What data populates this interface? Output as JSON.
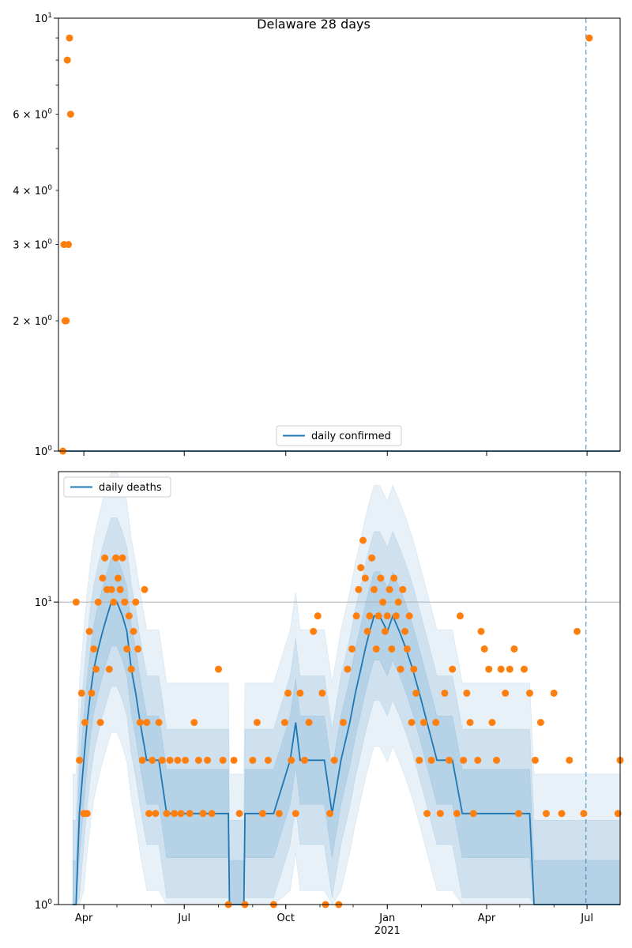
{
  "colors": {
    "line": "#1f77b4",
    "points": "#ff7f0e",
    "band": "#1f77b4",
    "vline": "#1f77b4",
    "hgrid": "#b0b0b0"
  },
  "chart_data": [
    {
      "type": "scatter",
      "title": "Delaware 28 days",
      "yscale": "log",
      "ylim": [
        1,
        10
      ],
      "xlim": [
        "2020-03-09",
        "2021-07-31"
      ],
      "legend": {
        "placement": "lower center",
        "entries": [
          "daily confirmed"
        ]
      },
      "series": [
        {
          "name": "daily confirmed",
          "kind": "line",
          "values": [
            [
              "2020-03-09",
              1
            ],
            [
              "2021-07-31",
              1
            ]
          ]
        },
        {
          "kind": "points",
          "values": [
            [
              "2020-03-13",
              1
            ],
            [
              "2020-03-14",
              3
            ],
            [
              "2020-03-15",
              2
            ],
            [
              "2020-03-16",
              2
            ],
            [
              "2020-03-17",
              8
            ],
            [
              "2020-03-18",
              3
            ],
            [
              "2020-03-19",
              9
            ],
            [
              "2020-03-20",
              6
            ],
            [
              "2021-07-03",
              9
            ]
          ]
        }
      ],
      "vline": "2021-06-30",
      "yticks": {
        "major": [
          {
            "value": 1,
            "base": "10",
            "exp": "0"
          },
          {
            "value": 10,
            "base": "10",
            "exp": "1"
          }
        ],
        "minor": [
          {
            "value": 2,
            "coef": "2 × ",
            "base": "10",
            "exp": "0"
          },
          {
            "value": 3,
            "coef": "3 × ",
            "base": "10",
            "exp": "0"
          },
          {
            "value": 4,
            "coef": "4 × ",
            "base": "10",
            "exp": "0"
          },
          {
            "value": 5
          },
          {
            "value": 6,
            "coef": "6 × ",
            "base": "10",
            "exp": "0"
          },
          {
            "value": 7
          },
          {
            "value": 8
          },
          {
            "value": 9
          }
        ]
      }
    },
    {
      "type": "line",
      "title": "",
      "yscale": "log",
      "ylim": [
        1,
        27
      ],
      "xlim": [
        "2020-03-09",
        "2021-07-31"
      ],
      "legend": {
        "placement": "upper left",
        "entries": [
          "daily deaths"
        ]
      },
      "xticks": [
        {
          "date": "2020-04-01",
          "label": "Apr"
        },
        {
          "date": "2020-07-01",
          "label": "Jul"
        },
        {
          "date": "2020-10-01",
          "label": "Oct"
        },
        {
          "date": "2021-01-01",
          "label": "Jan",
          "sublabel": "2021"
        },
        {
          "date": "2021-04-01",
          "label": "Apr"
        },
        {
          "date": "2021-07-01",
          "label": "Jul"
        }
      ],
      "yticks": {
        "major": [
          {
            "value": 1,
            "base": "10",
            "exp": "0"
          },
          {
            "value": 10,
            "base": "10",
            "exp": "1"
          }
        ]
      },
      "grid": "horizontal at 10",
      "vline": "2021-06-30",
      "series": [
        {
          "name": "daily deaths",
          "kind": "line",
          "values": [
            [
              "2020-03-22",
              1
            ],
            [
              "2020-03-25",
              1
            ],
            [
              "2020-03-28",
              2
            ],
            [
              "2020-04-01",
              3
            ],
            [
              "2020-04-04",
              4
            ],
            [
              "2020-04-07",
              5
            ],
            [
              "2020-04-10",
              6
            ],
            [
              "2020-04-14",
              7
            ],
            [
              "2020-04-18",
              8
            ],
            [
              "2020-04-22",
              9
            ],
            [
              "2020-04-26",
              10
            ],
            [
              "2020-05-01",
              10
            ],
            [
              "2020-05-06",
              9
            ],
            [
              "2020-05-10",
              8
            ],
            [
              "2020-05-14",
              6
            ],
            [
              "2020-05-18",
              5
            ],
            [
              "2020-05-22",
              4
            ],
            [
              "2020-05-28",
              3
            ],
            [
              "2020-06-08",
              3
            ],
            [
              "2020-06-15",
              2
            ],
            [
              "2020-07-15",
              2
            ],
            [
              "2020-08-10",
              2
            ],
            [
              "2020-08-11",
              1
            ],
            [
              "2020-08-24",
              1
            ],
            [
              "2020-08-25",
              2
            ],
            [
              "2020-09-20",
              2
            ],
            [
              "2020-10-05",
              3
            ],
            [
              "2020-10-10",
              4
            ],
            [
              "2020-10-14",
              3
            ],
            [
              "2020-11-05",
              3
            ],
            [
              "2020-11-12",
              2
            ],
            [
              "2020-11-20",
              3
            ],
            [
              "2020-11-28",
              4
            ],
            [
              "2020-12-03",
              5
            ],
            [
              "2020-12-08",
              6
            ],
            [
              "2020-12-12",
              7
            ],
            [
              "2020-12-16",
              8
            ],
            [
              "2020-12-20",
              9
            ],
            [
              "2020-12-25",
              9
            ],
            [
              "2021-01-01",
              8
            ],
            [
              "2021-01-06",
              9
            ],
            [
              "2021-01-12",
              8
            ],
            [
              "2021-01-18",
              7
            ],
            [
              "2021-01-24",
              6
            ],
            [
              "2021-01-30",
              5
            ],
            [
              "2021-02-06",
              4
            ],
            [
              "2021-02-15",
              3
            ],
            [
              "2021-03-01",
              3
            ],
            [
              "2021-03-10",
              2
            ],
            [
              "2021-05-10",
              2
            ],
            [
              "2021-05-14",
              1
            ],
            [
              "2021-07-31",
              1
            ]
          ]
        },
        {
          "kind": "points",
          "values": [
            [
              "2020-03-25",
              10
            ],
            [
              "2020-03-28",
              3
            ],
            [
              "2020-03-30",
              5
            ],
            [
              "2020-04-01",
              2
            ],
            [
              "2020-04-02",
              4
            ],
            [
              "2020-04-04",
              2
            ],
            [
              "2020-04-06",
              8
            ],
            [
              "2020-04-08",
              5
            ],
            [
              "2020-04-10",
              7
            ],
            [
              "2020-04-12",
              6
            ],
            [
              "2020-04-14",
              10
            ],
            [
              "2020-04-16",
              4
            ],
            [
              "2020-04-18",
              12
            ],
            [
              "2020-04-20",
              14
            ],
            [
              "2020-04-22",
              11
            ],
            [
              "2020-04-24",
              6
            ],
            [
              "2020-04-26",
              11
            ],
            [
              "2020-04-28",
              10
            ],
            [
              "2020-04-30",
              14
            ],
            [
              "2020-05-02",
              12
            ],
            [
              "2020-05-04",
              11
            ],
            [
              "2020-05-06",
              14
            ],
            [
              "2020-05-08",
              10
            ],
            [
              "2020-05-10",
              7
            ],
            [
              "2020-05-12",
              9
            ],
            [
              "2020-05-14",
              6
            ],
            [
              "2020-05-16",
              8
            ],
            [
              "2020-05-18",
              10
            ],
            [
              "2020-05-20",
              7
            ],
            [
              "2020-05-22",
              4
            ],
            [
              "2020-05-24",
              3
            ],
            [
              "2020-05-26",
              11
            ],
            [
              "2020-05-28",
              4
            ],
            [
              "2020-05-30",
              2
            ],
            [
              "2020-06-02",
              3
            ],
            [
              "2020-06-05",
              2
            ],
            [
              "2020-06-08",
              4
            ],
            [
              "2020-06-11",
              3
            ],
            [
              "2020-06-15",
              2
            ],
            [
              "2020-06-18",
              3
            ],
            [
              "2020-06-22",
              2
            ],
            [
              "2020-06-25",
              3
            ],
            [
              "2020-06-28",
              2
            ],
            [
              "2020-07-02",
              3
            ],
            [
              "2020-07-06",
              2
            ],
            [
              "2020-07-10",
              4
            ],
            [
              "2020-07-14",
              3
            ],
            [
              "2020-07-18",
              2
            ],
            [
              "2020-07-22",
              3
            ],
            [
              "2020-07-26",
              2
            ],
            [
              "2020-08-01",
              6
            ],
            [
              "2020-08-05",
              3
            ],
            [
              "2020-08-10",
              1
            ],
            [
              "2020-08-15",
              3
            ],
            [
              "2020-08-20",
              2
            ],
            [
              "2020-08-25",
              1
            ],
            [
              "2020-09-01",
              3
            ],
            [
              "2020-09-05",
              4
            ],
            [
              "2020-09-10",
              2
            ],
            [
              "2020-09-15",
              3
            ],
            [
              "2020-09-20",
              1
            ],
            [
              "2020-09-25",
              2
            ],
            [
              "2020-09-30",
              4
            ],
            [
              "2020-10-03",
              5
            ],
            [
              "2020-10-06",
              3
            ],
            [
              "2020-10-10",
              2
            ],
            [
              "2020-10-14",
              5
            ],
            [
              "2020-10-18",
              3
            ],
            [
              "2020-10-22",
              4
            ],
            [
              "2020-10-26",
              8
            ],
            [
              "2020-10-30",
              9
            ],
            [
              "2020-11-03",
              5
            ],
            [
              "2020-11-06",
              1
            ],
            [
              "2020-11-10",
              2
            ],
            [
              "2020-11-14",
              3
            ],
            [
              "2020-11-18",
              1
            ],
            [
              "2020-11-22",
              4
            ],
            [
              "2020-11-26",
              6
            ],
            [
              "2020-11-30",
              7
            ],
            [
              "2020-12-04",
              9
            ],
            [
              "2020-12-06",
              11
            ],
            [
              "2020-12-08",
              13
            ],
            [
              "2020-12-10",
              16
            ],
            [
              "2020-12-12",
              12
            ],
            [
              "2020-12-14",
              8
            ],
            [
              "2020-12-16",
              9
            ],
            [
              "2020-12-18",
              14
            ],
            [
              "2020-12-20",
              11
            ],
            [
              "2020-12-22",
              7
            ],
            [
              "2020-12-24",
              9
            ],
            [
              "2020-12-26",
              12
            ],
            [
              "2020-12-28",
              10
            ],
            [
              "2020-12-30",
              8
            ],
            [
              "2021-01-01",
              9
            ],
            [
              "2021-01-03",
              11
            ],
            [
              "2021-01-05",
              7
            ],
            [
              "2021-01-07",
              12
            ],
            [
              "2021-01-09",
              9
            ],
            [
              "2021-01-11",
              10
            ],
            [
              "2021-01-13",
              6
            ],
            [
              "2021-01-15",
              11
            ],
            [
              "2021-01-17",
              8
            ],
            [
              "2021-01-19",
              7
            ],
            [
              "2021-01-21",
              9
            ],
            [
              "2021-01-23",
              4
            ],
            [
              "2021-01-25",
              6
            ],
            [
              "2021-01-27",
              5
            ],
            [
              "2021-01-30",
              3
            ],
            [
              "2021-02-03",
              4
            ],
            [
              "2021-02-06",
              2
            ],
            [
              "2021-02-10",
              3
            ],
            [
              "2021-02-14",
              4
            ],
            [
              "2021-02-18",
              2
            ],
            [
              "2021-02-22",
              5
            ],
            [
              "2021-02-26",
              3
            ],
            [
              "2021-03-01",
              6
            ],
            [
              "2021-03-05",
              2
            ],
            [
              "2021-03-08",
              9
            ],
            [
              "2021-03-11",
              3
            ],
            [
              "2021-03-14",
              5
            ],
            [
              "2021-03-17",
              4
            ],
            [
              "2021-03-20",
              2
            ],
            [
              "2021-03-24",
              3
            ],
            [
              "2021-03-27",
              8
            ],
            [
              "2021-03-30",
              7
            ],
            [
              "2021-04-03",
              6
            ],
            [
              "2021-04-06",
              4
            ],
            [
              "2021-04-10",
              3
            ],
            [
              "2021-04-14",
              6
            ],
            [
              "2021-04-18",
              5
            ],
            [
              "2021-04-22",
              6
            ],
            [
              "2021-04-26",
              7
            ],
            [
              "2021-04-30",
              2
            ],
            [
              "2021-05-05",
              6
            ],
            [
              "2021-05-10",
              5
            ],
            [
              "2021-05-15",
              3
            ],
            [
              "2021-05-20",
              4
            ],
            [
              "2021-05-25",
              2
            ],
            [
              "2021-06-01",
              5
            ],
            [
              "2021-06-08",
              2
            ],
            [
              "2021-06-15",
              3
            ],
            [
              "2021-06-22",
              8
            ],
            [
              "2021-06-28",
              2
            ],
            [
              "2021-07-31",
              3
            ],
            [
              "2021-07-29",
              2
            ]
          ]
        }
      ]
    }
  ]
}
